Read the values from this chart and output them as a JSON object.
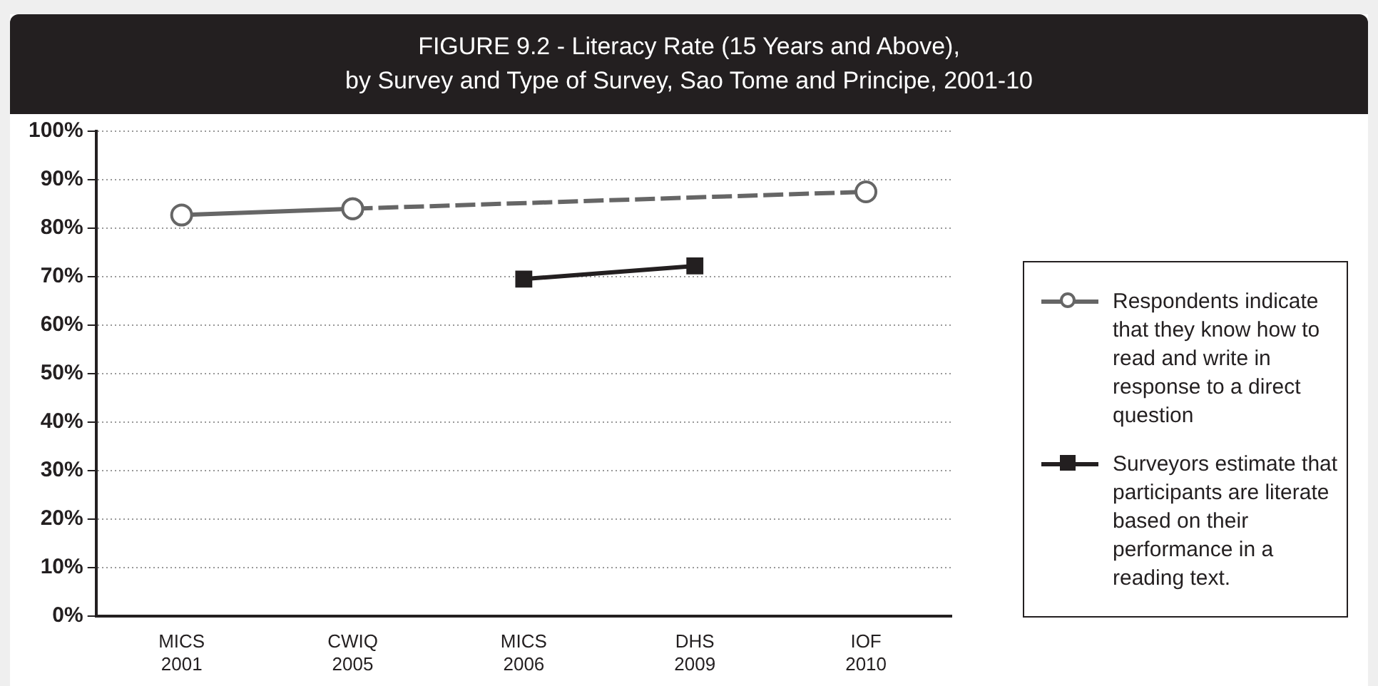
{
  "chart_data": {
    "type": "line",
    "title": "FIGURE 9.2 - Literacy Rate (15 Years and Above),",
    "subtitle": "by Survey and Type of Survey, Sao Tome and Principe, 2001-10",
    "categories": [
      "MICS\n2001",
      "CWIQ\n2005",
      "MICS\n2006",
      "DHS\n2009",
      "IOF\n2010"
    ],
    "series": [
      {
        "name": "Respondents indicate that they know how to read and write in response to a direct question",
        "color": "#666666",
        "marker": "circle",
        "line_style": "solid",
        "values": [
          82.7,
          84,
          null,
          null,
          null
        ]
      },
      {
        "color": "#666666",
        "marker": "circle",
        "line_style": "dashed",
        "x": [
          "CWIQ\n2005",
          "IOF\n2010"
        ],
        "values": [
          84,
          87.5
        ]
      },
      {
        "name": "Surveyors estimate that participants are literate based on their performance in a reading text.",
        "color": "#231f20",
        "marker": "square",
        "line_style": "solid",
        "values": [
          null,
          null,
          69.5,
          72.2,
          null
        ]
      }
    ],
    "ylim": [
      0,
      100
    ],
    "yticks": [
      {
        "value": 0,
        "label": "0%"
      },
      {
        "value": 10,
        "label": "10%"
      },
      {
        "value": 20,
        "label": "20%"
      },
      {
        "value": 30,
        "label": "30%"
      },
      {
        "value": 40,
        "label": "40%"
      },
      {
        "value": 50,
        "label": "50%"
      },
      {
        "value": 60,
        "label": "60%"
      },
      {
        "value": 70,
        "label": "70%"
      },
      {
        "value": 80,
        "label": "80%"
      },
      {
        "value": 90,
        "label": "90%"
      },
      {
        "value": 100,
        "label": "100%"
      }
    ],
    "grid": "y",
    "legend": "right"
  }
}
